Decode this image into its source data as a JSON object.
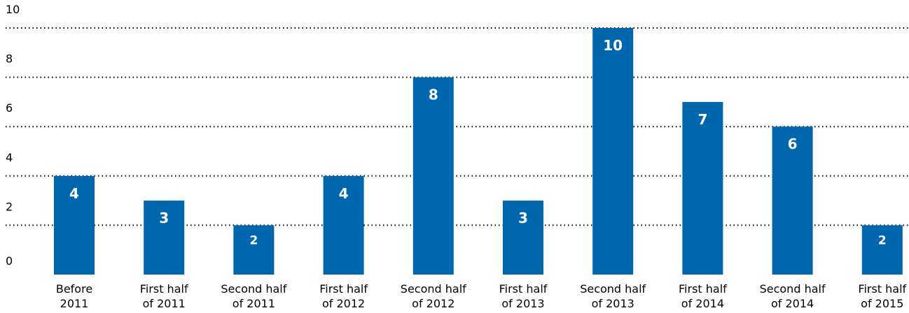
{
  "chart_data": {
    "type": "bar",
    "categories": [
      [
        "Before",
        "2011"
      ],
      [
        "First half",
        "of 2011"
      ],
      [
        "Second half",
        "of 2011"
      ],
      [
        "First half",
        "of 2012"
      ],
      [
        "Second half",
        "of 2012"
      ],
      [
        "First half",
        "of 2013"
      ],
      [
        "Second half",
        "of 2013"
      ],
      [
        "First half",
        "of 2014"
      ],
      [
        "Second half",
        "of 2014"
      ],
      [
        "First half",
        "of 2015"
      ]
    ],
    "values": [
      4,
      3,
      2,
      4,
      8,
      3,
      10,
      7,
      6,
      2
    ],
    "data_labels": [
      "4",
      "3",
      "2",
      "4",
      "8",
      "3",
      "10",
      "7",
      "6",
      "2"
    ],
    "y_ticks": [
      "0",
      "2",
      "4",
      "6",
      "8",
      "10"
    ],
    "ylim": [
      0,
      10
    ],
    "grid": true,
    "title": "",
    "xlabel": "",
    "ylabel": "",
    "colors": {
      "bar": "#0066ad",
      "grid": "#000000",
      "label": "#ffffff"
    }
  }
}
